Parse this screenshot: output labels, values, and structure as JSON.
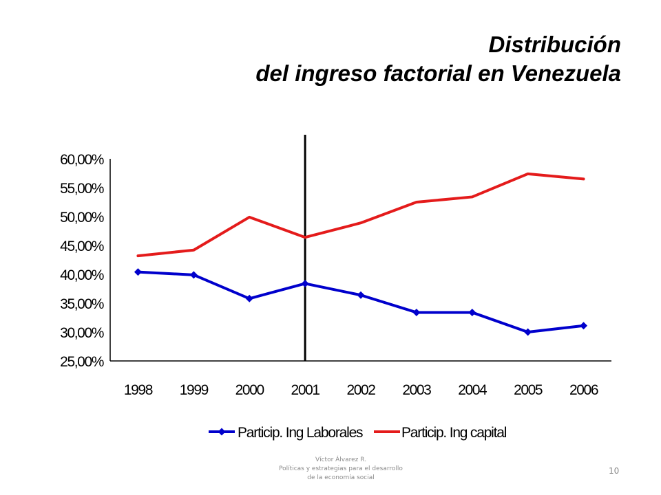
{
  "slide": {
    "title_line1": "Distribución",
    "title_line2": "del ingreso factorial en Venezuela",
    "footer_line1": "Víctor Álvarez R.",
    "footer_line2": "Políticas y estrategias  para el desarrollo",
    "footer_line3": "de la economía social",
    "page_number": "10"
  },
  "chart_data": {
    "type": "line",
    "title": "",
    "xlabel": "",
    "ylabel": "",
    "categories": [
      "1998",
      "1999",
      "2000",
      "2001",
      "2002",
      "2003",
      "2004",
      "2005",
      "2006"
    ],
    "ylim": [
      25,
      60
    ],
    "yticks": [
      25,
      30,
      35,
      40,
      45,
      50,
      55,
      60
    ],
    "ytick_labels": [
      "25,00%",
      "30,00%",
      "35,00%",
      "40,00%",
      "45,00%",
      "50,00%",
      "55,00%",
      "60,00%"
    ],
    "grid": false,
    "legend_position": "bottom",
    "vertical_marker_at": "2001",
    "series": [
      {
        "name": "Particip. Ing Laborales",
        "color": "#0000cc",
        "marker": "diamond",
        "values": [
          40.4,
          39.9,
          35.8,
          38.4,
          36.4,
          33.4,
          33.4,
          30.0,
          31.1
        ]
      },
      {
        "name": "Particip. Ing capital",
        "color": "#e41b1b",
        "marker": "none",
        "values": [
          43.2,
          44.2,
          49.9,
          46.4,
          48.9,
          52.5,
          53.4,
          57.4,
          56.5
        ]
      }
    ]
  }
}
